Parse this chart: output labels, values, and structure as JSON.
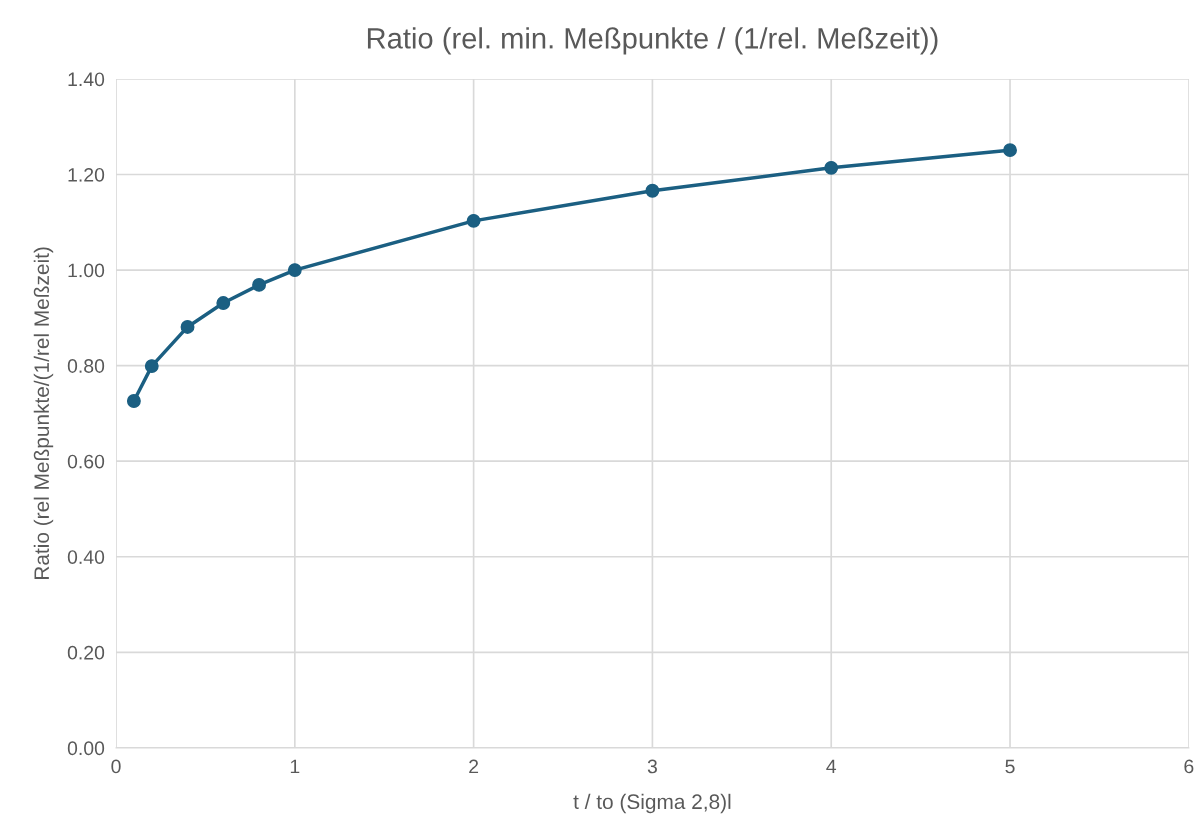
{
  "chart_data": {
    "type": "line",
    "title": "Ratio (rel. min. Meßpunkte / (1/rel. Meßzeit))",
    "xlabel": "t / to (Sigma 2,8)l",
    "ylabel": "Ratio (rel Meßpunkte/(1/rel Meßzeit)",
    "x": [
      0.1,
      0.2,
      0.4,
      0.6,
      0.8,
      1,
      2,
      3,
      4,
      5
    ],
    "series": [
      {
        "color": "#1b5f82",
        "values": [
          0.726,
          0.799,
          0.881,
          0.931,
          0.969,
          1.0,
          1.103,
          1.166,
          1.214,
          1.251
        ]
      }
    ],
    "xlim": [
      0,
      6
    ],
    "xticks": [
      0,
      1,
      2,
      3,
      4,
      5,
      6
    ],
    "ylim": [
      0,
      1.4
    ],
    "yticks": [
      {
        "value": 0,
        "label": "0.00"
      },
      {
        "value": 0.2,
        "label": "0.20"
      },
      {
        "value": 0.4,
        "label": "0.40"
      },
      {
        "value": 0.6,
        "label": "0.60"
      },
      {
        "value": 0.8,
        "label": "0.80"
      },
      {
        "value": 1.0,
        "label": "1.00"
      },
      {
        "value": 1.2,
        "label": "1.20"
      },
      {
        "value": 1.4,
        "label": "1.40"
      }
    ],
    "grid": true,
    "marker": "circle",
    "line_style": "solid"
  }
}
